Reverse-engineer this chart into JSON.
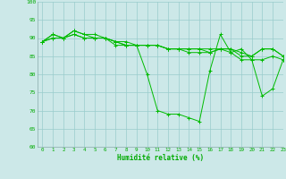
{
  "background_color": "#cce8e8",
  "grid_color": "#99cccc",
  "line_color": "#00bb00",
  "marker_color": "#00bb00",
  "xlabel": "Humidité relative (%)",
  "xlabel_color": "#00aa00",
  "tick_color": "#00aa00",
  "ylim": [
    60,
    100
  ],
  "xlim": [
    -0.5,
    23
  ],
  "yticks": [
    60,
    65,
    70,
    75,
    80,
    85,
    90,
    95,
    100
  ],
  "xticks": [
    0,
    1,
    2,
    3,
    4,
    5,
    6,
    7,
    8,
    9,
    10,
    11,
    12,
    13,
    14,
    15,
    16,
    17,
    18,
    19,
    20,
    21,
    22,
    23
  ],
  "series": [
    [
      89,
      91,
      90,
      92,
      91,
      90,
      90,
      88,
      88,
      88,
      80,
      70,
      69,
      69,
      68,
      67,
      81,
      91,
      86,
      87,
      84,
      74,
      76,
      84
    ],
    [
      89,
      91,
      90,
      92,
      91,
      91,
      90,
      89,
      88,
      88,
      88,
      88,
      87,
      87,
      86,
      86,
      86,
      87,
      86,
      84,
      84,
      84,
      85,
      84
    ],
    [
      89,
      90,
      90,
      91,
      90,
      90,
      90,
      89,
      88,
      88,
      88,
      88,
      87,
      87,
      87,
      87,
      86,
      87,
      87,
      85,
      85,
      87,
      87,
      85
    ],
    [
      89,
      90,
      90,
      91,
      90,
      90,
      90,
      89,
      89,
      88,
      88,
      88,
      87,
      87,
      87,
      87,
      87,
      87,
      87,
      86,
      85,
      87,
      87,
      85
    ]
  ]
}
